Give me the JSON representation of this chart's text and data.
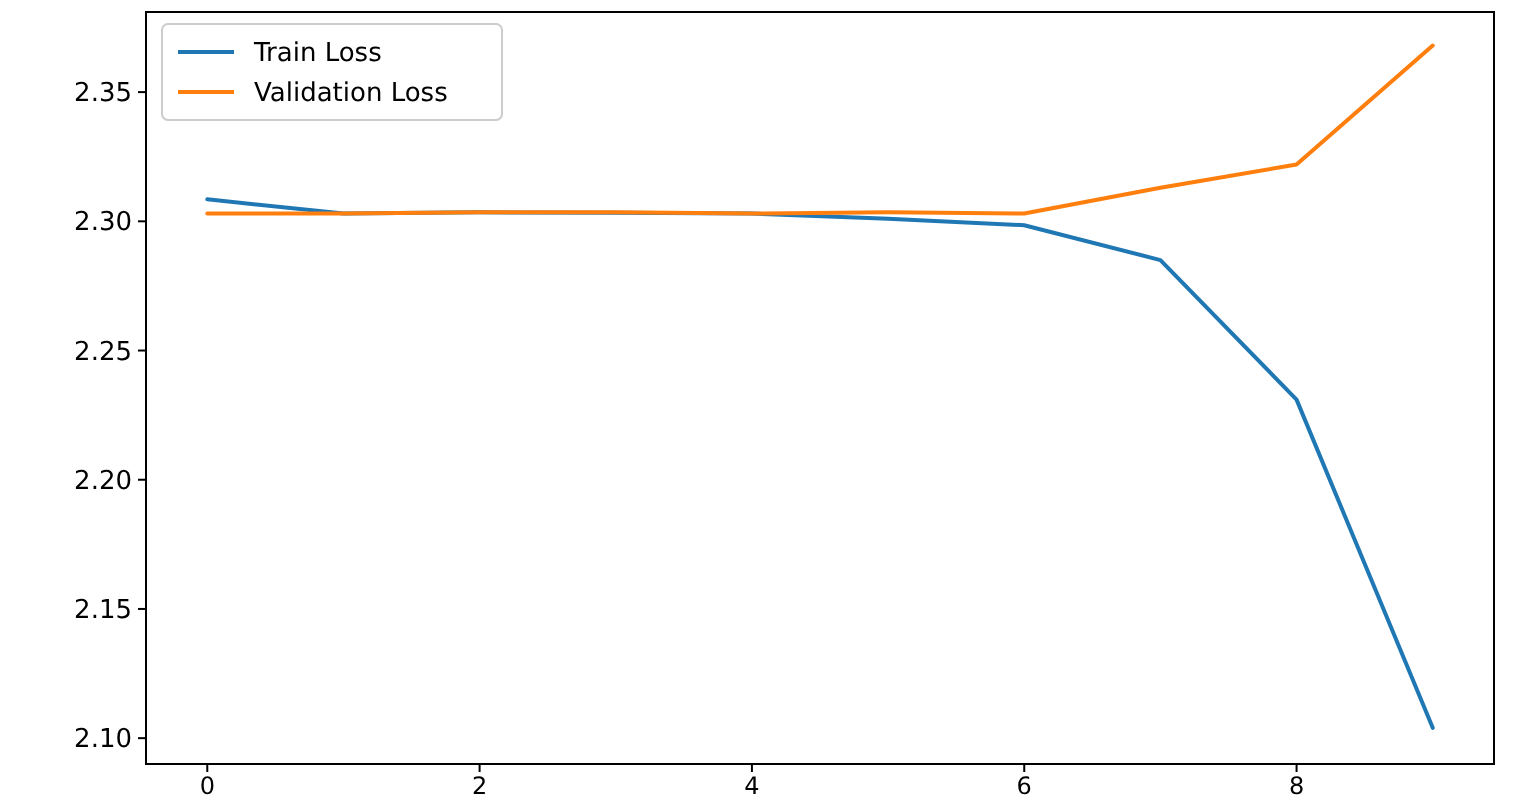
{
  "chart_data": {
    "type": "line",
    "x": [
      0,
      1,
      2,
      3,
      4,
      5,
      6,
      7,
      8,
      9
    ],
    "series": [
      {
        "name": "Train Loss",
        "color": "#1f77b4",
        "values": [
          2.3085,
          2.303,
          2.3035,
          2.3033,
          2.303,
          2.301,
          2.2985,
          2.285,
          2.231,
          2.104
        ]
      },
      {
        "name": "Validation Loss",
        "color": "#ff7f0e",
        "values": [
          2.303,
          2.303,
          2.3035,
          2.3035,
          2.303,
          2.3035,
          2.303,
          2.313,
          2.322,
          2.368
        ]
      }
    ],
    "xlim": [
      -0.45,
      9.45
    ],
    "xticks": [
      0,
      2,
      4,
      6,
      8
    ],
    "ylim": [
      2.09,
      2.381
    ],
    "yticks": [
      {
        "value": 2.1,
        "label": "2.10"
      },
      {
        "value": 2.15,
        "label": "2.15"
      },
      {
        "value": 2.2,
        "label": "2.20"
      },
      {
        "value": 2.25,
        "label": "2.25"
      },
      {
        "value": 2.3,
        "label": "2.30"
      },
      {
        "value": 2.35,
        "label": "2.35"
      }
    ],
    "grid": false,
    "legend": "top left",
    "marker": "none",
    "line_style": "solid"
  }
}
